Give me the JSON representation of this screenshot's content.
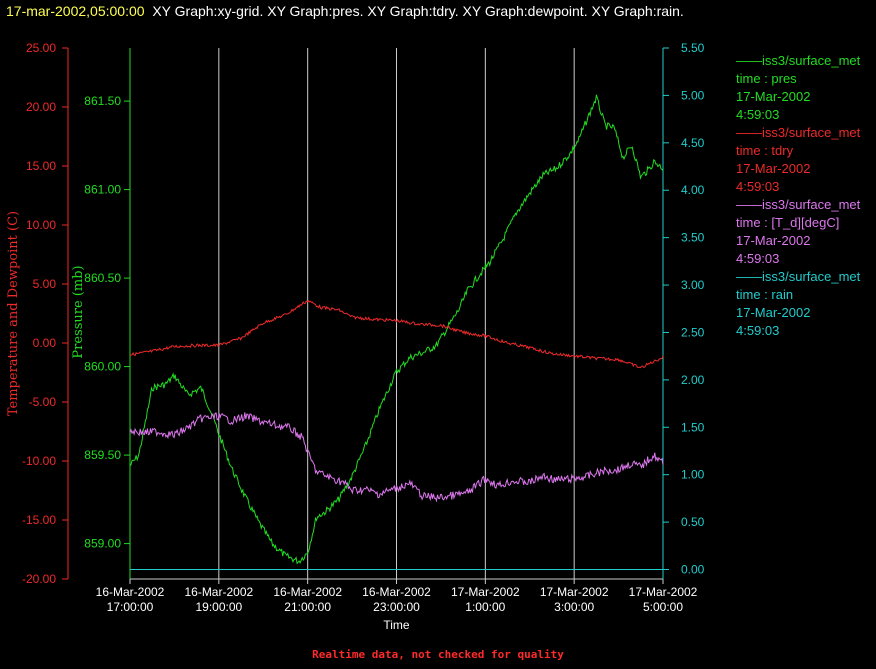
{
  "header": {
    "timestamp": "17-mar-2002,05:00:00",
    "graphs": "XY Graph:xy-grid.  XY Graph:pres.  XY Graph:tdry.  XY Graph:dewpoint.  XY Graph:rain."
  },
  "footer": {
    "note": "Realtime data, not checked for quality"
  },
  "colors": {
    "pres": "#22dd22",
    "tdry": "#ee2a2a",
    "dewpoint": "#dd77ee",
    "rain": "#22cccc",
    "grid": "#cccccc",
    "background": "#000000"
  },
  "legend": [
    {
      "source": "iss3/surface_met",
      "variable": "time : pres",
      "date": "17-Mar-2002",
      "time": "4:59:03",
      "color": "#22dd22"
    },
    {
      "source": "iss3/surface_met",
      "variable": "time : tdry",
      "date": "17-Mar-2002",
      "time": "4:59:03",
      "color": "#ee2a2a"
    },
    {
      "source": "iss3/surface_met",
      "variable": "time : [T_d][degC]",
      "date": "17-Mar-2002",
      "time": "4:59:03",
      "color": "#dd77ee"
    },
    {
      "source": "iss3/surface_met",
      "variable": "time : rain",
      "date": "17-Mar-2002",
      "time": "4:59:03",
      "color": "#22cccc"
    }
  ],
  "chart_data": {
    "type": "line",
    "xlabel": "Time",
    "x_ticks": [
      {
        "date": "16-Mar-2002",
        "time": "17:00:00"
      },
      {
        "date": "16-Mar-2002",
        "time": "19:00:00"
      },
      {
        "date": "16-Mar-2002",
        "time": "21:00:00"
      },
      {
        "date": "16-Mar-2002",
        "time": "23:00:00"
      },
      {
        "date": "17-Mar-2002",
        "time": "1:00:00"
      },
      {
        "date": "17-Mar-2002",
        "time": "3:00:00"
      },
      {
        "date": "17-Mar-2002",
        "time": "5:00:00"
      }
    ],
    "x_range": [
      "16-Mar-2002 17:00:00",
      "17-Mar-2002 05:00:00"
    ],
    "grid": "vertical lines at x ticks",
    "axes": [
      {
        "id": "temp",
        "label": "Temperature and Dewpoint (C)",
        "side": "left-outer",
        "range": [
          -20,
          25
        ],
        "ticks": [
          "-20.00",
          "-15.00",
          "-10.00",
          "-5.00",
          "0.00",
          "5.00",
          "10.00",
          "15.00",
          "20.00",
          "25.00"
        ]
      },
      {
        "id": "pres",
        "label": "Pressure (mb)",
        "side": "left-inner",
        "range": [
          858.8,
          861.8
        ],
        "ticks": [
          "859.00",
          "859.50",
          "860.00",
          "860.50",
          "861.00",
          "861.50"
        ]
      },
      {
        "id": "rain",
        "label": "",
        "side": "right",
        "range": [
          -0.1,
          5.5
        ],
        "ticks": [
          "0.00",
          "0.50",
          "1.00",
          "1.50",
          "2.00",
          "2.50",
          "3.00",
          "3.50",
          "4.00",
          "4.50",
          "5.00",
          "5.50"
        ]
      }
    ],
    "series": [
      {
        "name": "pres",
        "axis": "pres",
        "color": "#22dd22",
        "x": [
          17.0,
          17.2,
          17.5,
          17.8,
          18.0,
          18.3,
          18.6,
          18.8,
          19.0,
          19.3,
          19.6,
          19.9,
          20.2,
          20.5,
          20.8,
          21.0,
          21.2,
          21.4,
          21.7,
          22.0,
          22.3,
          22.6,
          22.9,
          23.0,
          23.3,
          23.6,
          23.9,
          24.1,
          24.4,
          24.6,
          24.9,
          25.1,
          25.4,
          25.7,
          26.0,
          26.3,
          26.6,
          26.9,
          27.1,
          27.3,
          27.5,
          27.7,
          27.9,
          28.1,
          28.3,
          28.5,
          28.7,
          28.8,
          29.0
        ],
        "y": [
          859.44,
          859.5,
          859.88,
          859.9,
          859.95,
          859.84,
          859.88,
          859.76,
          859.62,
          859.42,
          859.26,
          859.12,
          859.0,
          858.93,
          858.9,
          858.95,
          859.15,
          859.18,
          859.25,
          859.38,
          859.55,
          859.75,
          859.92,
          859.97,
          860.05,
          860.08,
          860.12,
          860.2,
          860.32,
          860.43,
          860.53,
          860.59,
          860.72,
          860.87,
          860.98,
          861.08,
          861.12,
          861.2,
          861.28,
          861.4,
          861.52,
          861.36,
          861.35,
          861.18,
          861.25,
          861.07,
          861.12,
          861.16,
          861.12
        ]
      },
      {
        "name": "tdry",
        "axis": "temp",
        "color": "#ee2a2a",
        "x": [
          17.0,
          17.5,
          18.0,
          18.5,
          19.0,
          19.5,
          20.0,
          20.5,
          21.0,
          21.3,
          21.7,
          22.0,
          22.5,
          23.0,
          23.5,
          24.0,
          24.5,
          25.0,
          25.5,
          26.0,
          26.5,
          27.0,
          27.5,
          28.0,
          28.5,
          29.0
        ],
        "y": [
          -1.0,
          -0.7,
          -0.3,
          -0.2,
          -0.2,
          0.4,
          1.7,
          2.4,
          3.6,
          3.0,
          2.8,
          2.2,
          2.0,
          1.9,
          1.6,
          1.5,
          0.9,
          0.6,
          0.0,
          -0.4,
          -0.9,
          -1.1,
          -1.3,
          -1.4,
          -2.1,
          -1.2
        ]
      },
      {
        "name": "dewpoint",
        "axis": "temp",
        "color": "#dd77ee",
        "x": [
          17.0,
          17.3,
          17.6,
          18.0,
          18.3,
          18.6,
          19.0,
          19.3,
          19.6,
          20.0,
          20.3,
          20.6,
          20.9,
          21.0,
          21.2,
          21.5,
          21.8,
          22.0,
          22.3,
          22.6,
          23.0,
          23.3,
          23.6,
          24.0,
          24.3,
          24.6,
          25.0,
          25.3,
          25.6,
          26.0,
          26.3,
          26.6,
          27.0,
          27.3,
          27.6,
          28.0,
          28.3,
          28.5,
          28.7,
          28.8,
          29.0
        ],
        "y": [
          -7.4,
          -7.6,
          -7.5,
          -7.8,
          -7.2,
          -6.4,
          -6.2,
          -6.6,
          -6.2,
          -6.7,
          -7.0,
          -7.2,
          -8.1,
          -9.3,
          -10.9,
          -11.4,
          -11.8,
          -12.5,
          -12.4,
          -12.8,
          -12.3,
          -11.9,
          -13.0,
          -13.1,
          -12.9,
          -12.7,
          -11.5,
          -12.1,
          -11.7,
          -11.8,
          -11.3,
          -11.6,
          -11.5,
          -11.3,
          -10.9,
          -10.7,
          -10.2,
          -10.5,
          -9.8,
          -9.5,
          -10.2
        ]
      },
      {
        "name": "rain",
        "axis": "rain",
        "color": "#22cccc",
        "x": [
          17.0,
          29.0
        ],
        "y": [
          0.0,
          0.0
        ]
      }
    ]
  }
}
